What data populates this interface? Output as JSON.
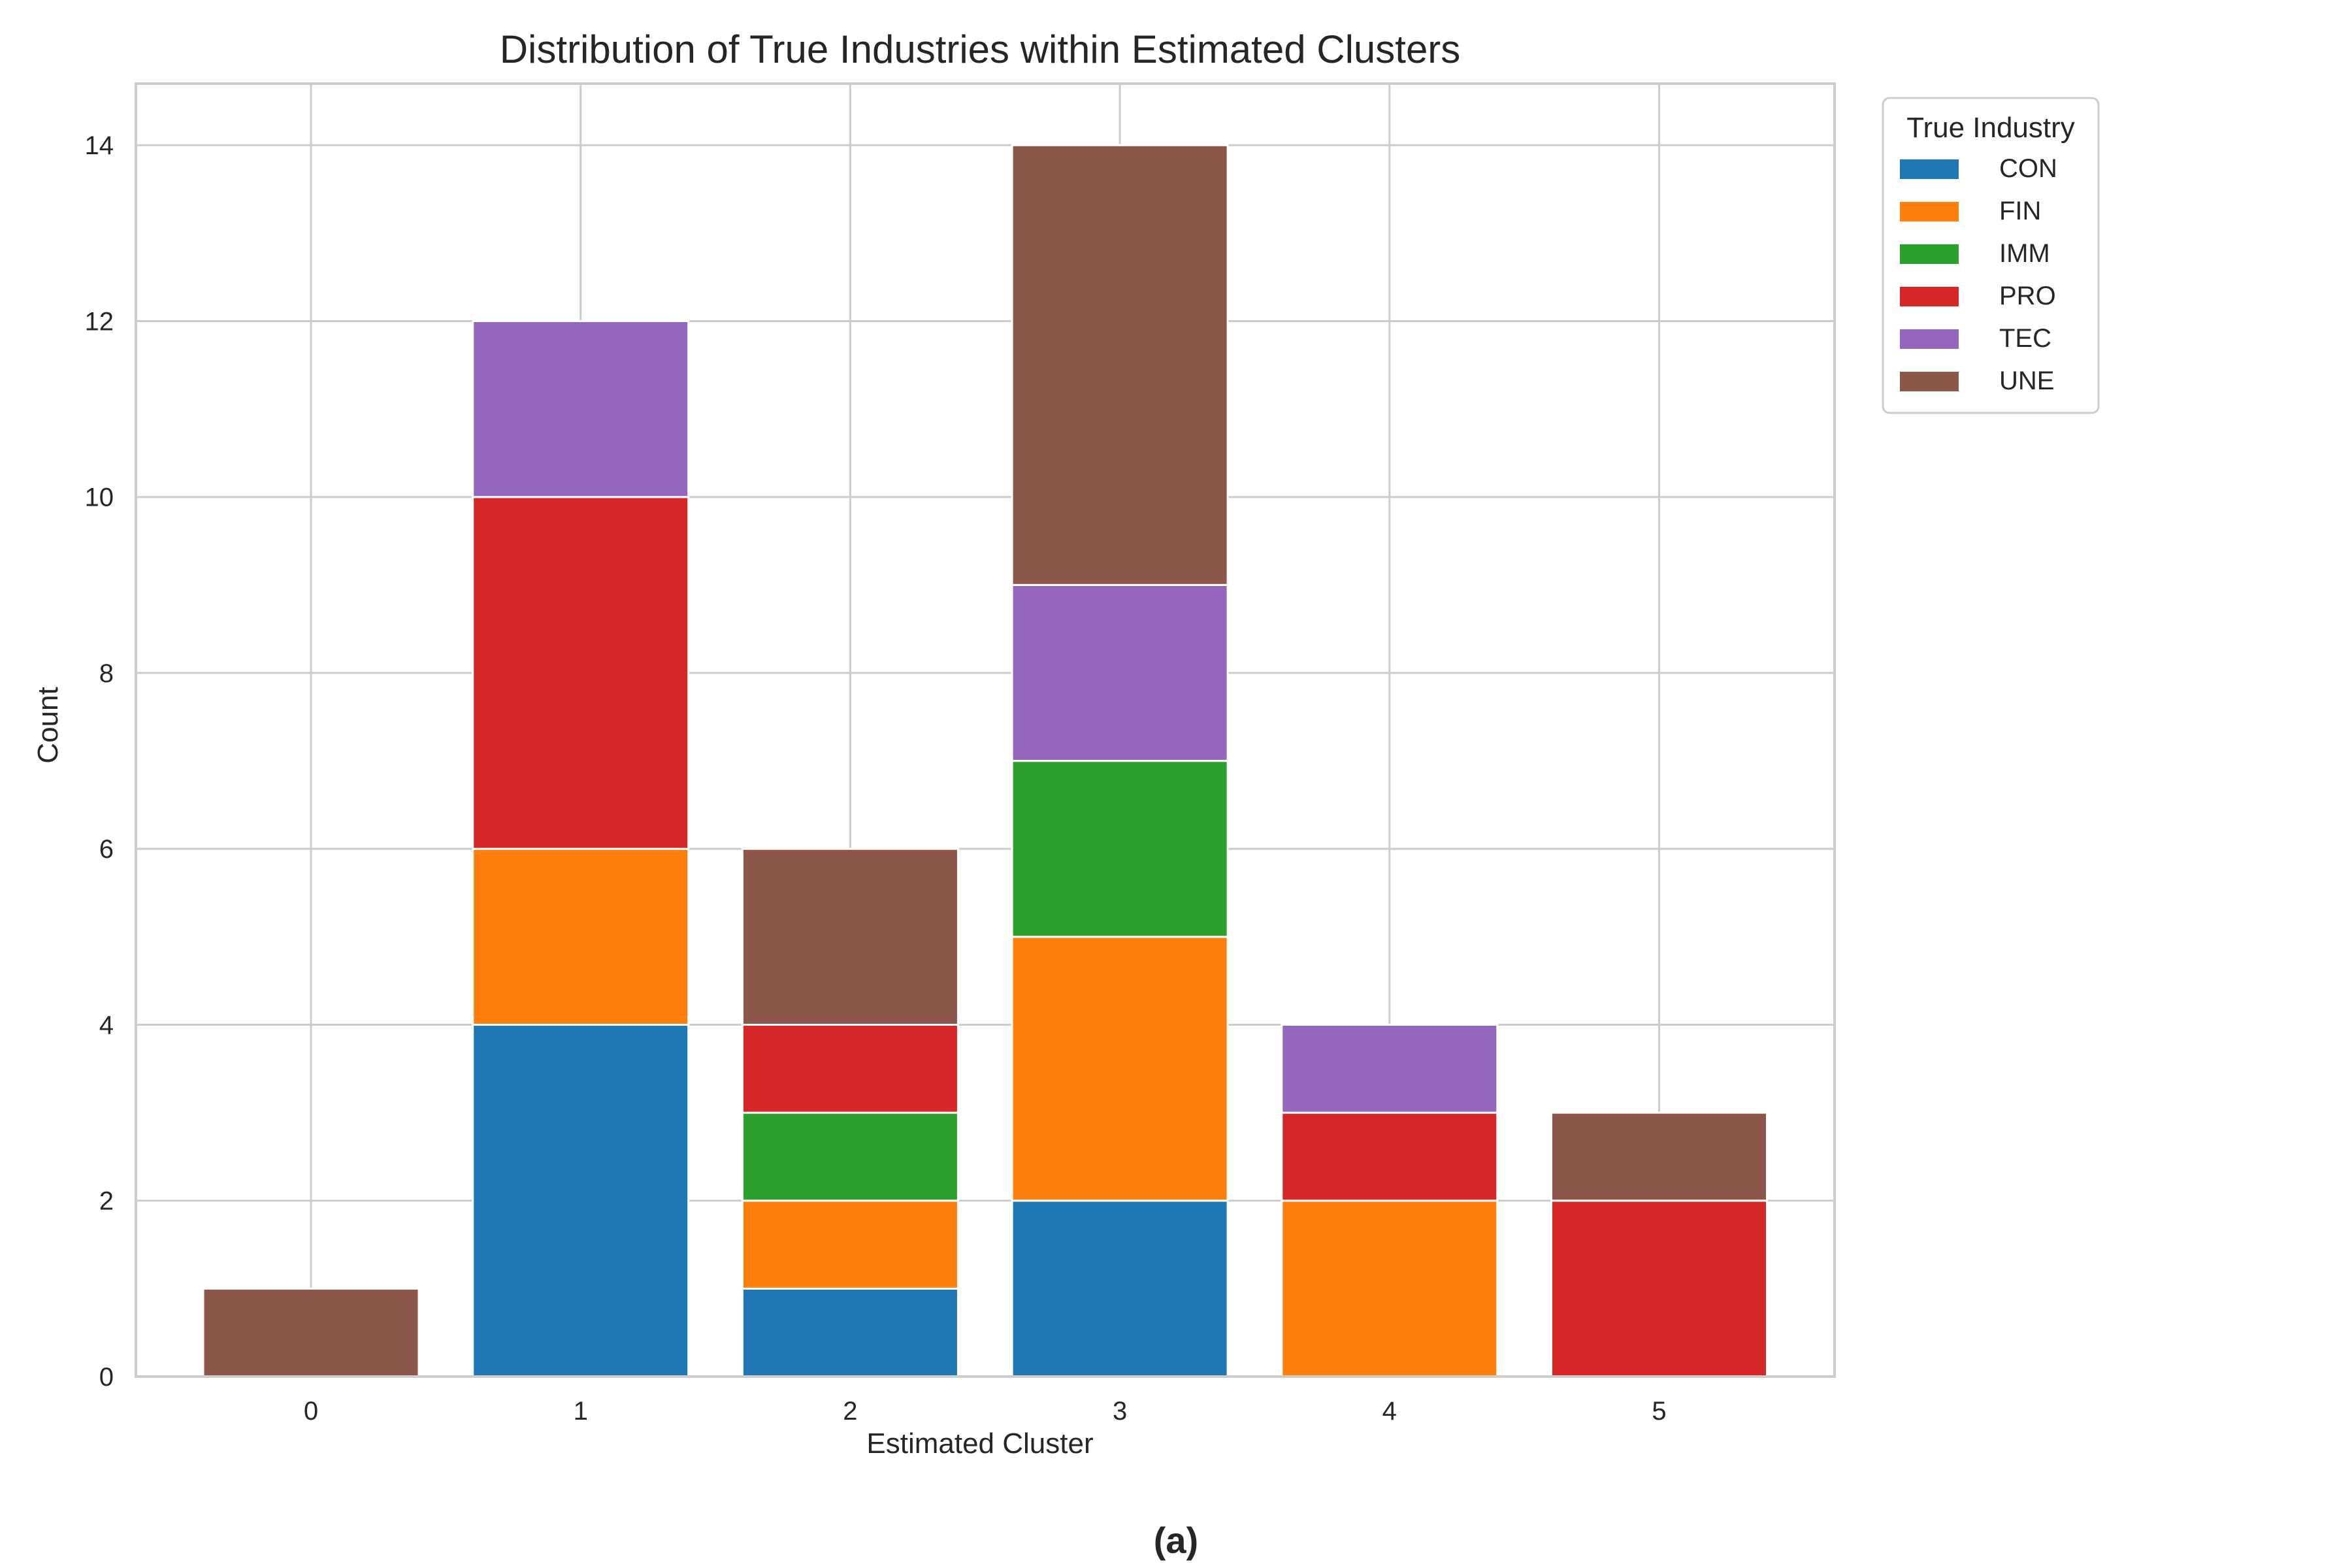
{
  "chart_data": {
    "type": "bar",
    "stacked": true,
    "title": "Distribution of True Industries within Estimated Clusters",
    "xlabel": "Estimated Cluster",
    "ylabel": "Count",
    "categories": [
      "0",
      "1",
      "2",
      "3",
      "4",
      "5"
    ],
    "ylim": [
      0,
      14.7
    ],
    "yticks": [
      "0",
      "2",
      "4",
      "6",
      "8",
      "10",
      "12",
      "14"
    ],
    "grid": true,
    "legend": {
      "title": "True Industry",
      "placement": "outside upper-right"
    },
    "series": [
      {
        "name": "CON",
        "color": "#1f77b4",
        "values": [
          0,
          4,
          1,
          2,
          0,
          0
        ]
      },
      {
        "name": "FIN",
        "color": "#ff7f0e",
        "values": [
          0,
          2,
          1,
          3,
          2,
          0
        ]
      },
      {
        "name": "IMM",
        "color": "#2ca02c",
        "values": [
          0,
          0,
          1,
          2,
          0,
          0
        ]
      },
      {
        "name": "PRO",
        "color": "#d62728",
        "values": [
          0,
          4,
          1,
          0,
          1,
          2
        ]
      },
      {
        "name": "TEC",
        "color": "#9467bd",
        "values": [
          0,
          2,
          0,
          2,
          1,
          0
        ]
      },
      {
        "name": "UNE",
        "color": "#8c564b",
        "values": [
          1,
          0,
          2,
          5,
          0,
          1
        ]
      }
    ]
  },
  "caption": "(a)"
}
